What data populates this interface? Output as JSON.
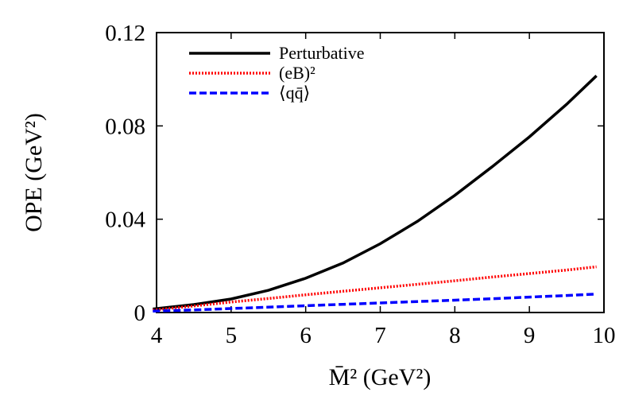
{
  "chart_data": {
    "type": "line",
    "xlabel": "M̄² (GeV²)",
    "ylabel": "OPE (GeV²)",
    "xlim": [
      4,
      10
    ],
    "ylim": [
      0,
      0.12
    ],
    "x_ticks": [
      "4",
      "5",
      "6",
      "7",
      "8",
      "9",
      "10"
    ],
    "y_ticks": [
      "0",
      "0.04",
      "0.08",
      "0.12"
    ],
    "legend_position": "top-left",
    "grid": false,
    "x": [
      3.95,
      4.5,
      5.0,
      5.5,
      6.0,
      6.5,
      7.0,
      7.5,
      8.0,
      8.5,
      9.0,
      9.5,
      9.9
    ],
    "series": [
      {
        "name": "Perturbative",
        "style": "solid",
        "color": "#000000",
        "values": [
          0.0015,
          0.0034,
          0.0058,
          0.0095,
          0.0147,
          0.0212,
          0.0295,
          0.0391,
          0.0502,
          0.0625,
          0.0753,
          0.0893,
          0.1015
        ]
      },
      {
        "name": "(eB)²",
        "style": "dotted",
        "color": "#ff0000",
        "values": [
          0.001,
          0.0028,
          0.0045,
          0.006,
          0.0076,
          0.0091,
          0.0106,
          0.0121,
          0.0136,
          0.0152,
          0.0167,
          0.0182,
          0.0196
        ]
      },
      {
        "name": "⟨qq̄⟩",
        "style": "dashed",
        "color": "#0000ff",
        "values": [
          0.0006,
          0.0011,
          0.0017,
          0.0023,
          0.0029,
          0.0035,
          0.0041,
          0.0047,
          0.0053,
          0.0059,
          0.0066,
          0.0073,
          0.0079
        ]
      }
    ]
  }
}
